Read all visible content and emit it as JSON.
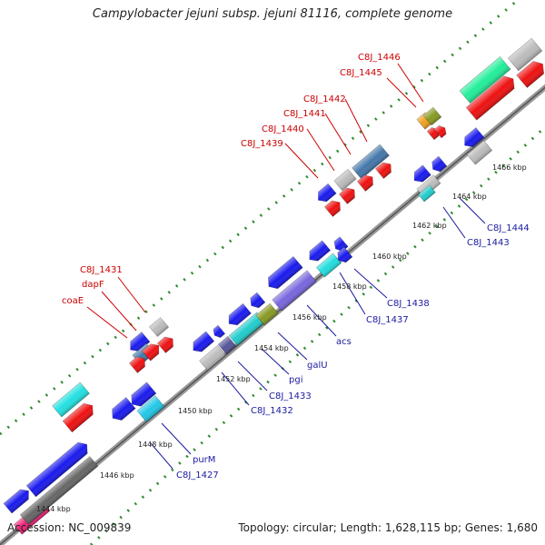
{
  "title": "Campylobacter jejuni subsp. jejuni 81116, complete genome",
  "footer": {
    "accession": "Accession: NC_009839",
    "summary": "Topology: circular; Length: 1,628,115 bp; Genes: 1,680"
  },
  "colors": {
    "label_top": "#cc0000",
    "label_bottom": "#1a1aa0",
    "backbone": "#888888",
    "ticks": "#2e8b2e"
  },
  "ticks": [
    "1444 kbp",
    "1446 kbp",
    "1448 kbp",
    "1450 kbp",
    "1452 kbp",
    "1454 kbp",
    "1456 kbp",
    "1458 kbp",
    "1460 kbp",
    "1462 kbp",
    "1464 kbp",
    "1466 kbp"
  ],
  "labels_top": [
    "coaE",
    "dapF",
    "C8J_1431",
    "C8J_1439",
    "C8J_1440",
    "C8J_1441",
    "C8J_1442",
    "C8J_1445",
    "C8J_1446"
  ],
  "labels_bottom": [
    "C8J_1427",
    "purM",
    "C8J_1432",
    "C8J_1433",
    "pgi",
    "galU",
    "acs",
    "C8J_1437",
    "C8J_1438",
    "C8J_1443",
    "C8J_1444"
  ]
}
